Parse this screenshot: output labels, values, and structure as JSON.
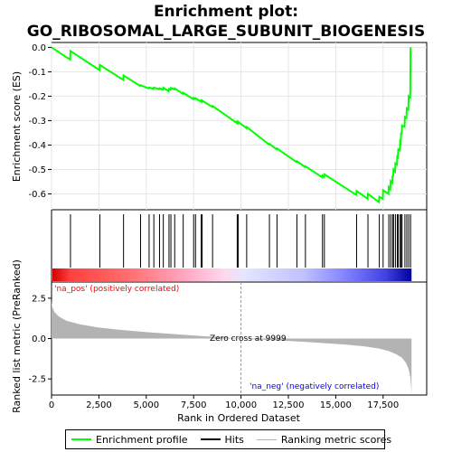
{
  "chart_data": {
    "type": "line",
    "title_line1": "Enrichment plot:",
    "title_line2": "GO_RIBOSOMAL_LARGE_SUBUNIT_BIOGENESIS",
    "xlabel": "Rank in Ordered Dataset",
    "es_ylabel": "Enrichment score (ES)",
    "metric_ylabel": "Ranked list metric (PreRanked)",
    "xlim": [
      0,
      19800
    ],
    "es_ylim": [
      -0.665,
      0.02
    ],
    "metric_ylim": [
      -3.5,
      3.5
    ],
    "x_ticks": [
      0,
      2500,
      5000,
      7500,
      10000,
      12500,
      15000,
      17500
    ],
    "x_tick_labels": [
      "0",
      "2,500",
      "5,000",
      "7,500",
      "10,000",
      "12,500",
      "15,000",
      "17,500"
    ],
    "es_ticks": [
      0.0,
      -0.1,
      -0.2,
      -0.3,
      -0.4,
      -0.5,
      -0.6
    ],
    "es_tick_labels": [
      "0.0",
      "-0.1",
      "-0.2",
      "-0.3",
      "-0.4",
      "-0.5",
      "-0.6"
    ],
    "metric_ticks": [
      2.5,
      0.0,
      -2.5
    ],
    "metric_tick_labels": [
      "2.5",
      "0.0",
      "-2.5"
    ],
    "zero_cross_label": "Zero cross at 9999",
    "zero_cross_rank": 9999,
    "na_pos_label": "'na_pos' (positively correlated)",
    "na_neg_label": "'na_neg' (negatively correlated)",
    "total_ranks": 19000,
    "hits": [
      1000,
      2550,
      3800,
      4700,
      5150,
      5400,
      5700,
      5900,
      6200,
      6300,
      6500,
      6950,
      7500,
      7600,
      7900,
      7950,
      8500,
      9800,
      9850,
      10300,
      11500,
      11900,
      12950,
      13400,
      14300,
      14400,
      16100,
      16700,
      17300,
      17500,
      17800,
      17900,
      18000,
      18050,
      18150,
      18250,
      18300,
      18400,
      18450,
      18500,
      18650,
      18750,
      18850,
      18950
    ],
    "es_curve": [
      [
        0,
        0.0
      ],
      [
        980,
        -0.05
      ],
      [
        1000,
        -0.015
      ],
      [
        2530,
        -0.093
      ],
      [
        2550,
        -0.072
      ],
      [
        3780,
        -0.133
      ],
      [
        3800,
        -0.115
      ],
      [
        4680,
        -0.158
      ],
      [
        4700,
        -0.155
      ],
      [
        5130,
        -0.168
      ],
      [
        5150,
        -0.165
      ],
      [
        5380,
        -0.17
      ],
      [
        5400,
        -0.165
      ],
      [
        5680,
        -0.171
      ],
      [
        5700,
        -0.168
      ],
      [
        5880,
        -0.173
      ],
      [
        5900,
        -0.165
      ],
      [
        6180,
        -0.18
      ],
      [
        6200,
        -0.17
      ],
      [
        6280,
        -0.173
      ],
      [
        6300,
        -0.166
      ],
      [
        6480,
        -0.172
      ],
      [
        6500,
        -0.168
      ],
      [
        6930,
        -0.19
      ],
      [
        6950,
        -0.186
      ],
      [
        7480,
        -0.212
      ],
      [
        7500,
        -0.207
      ],
      [
        7580,
        -0.211
      ],
      [
        7600,
        -0.208
      ],
      [
        7880,
        -0.222
      ],
      [
        7900,
        -0.218
      ],
      [
        7930,
        -0.222
      ],
      [
        7950,
        -0.218
      ],
      [
        8480,
        -0.244
      ],
      [
        8500,
        -0.24
      ],
      [
        9780,
        -0.31
      ],
      [
        9800,
        -0.305
      ],
      [
        9830,
        -0.31
      ],
      [
        9850,
        -0.305
      ],
      [
        10280,
        -0.33
      ],
      [
        10300,
        -0.326
      ],
      [
        11480,
        -0.398
      ],
      [
        11500,
        -0.395
      ],
      [
        11880,
        -0.418
      ],
      [
        11900,
        -0.414
      ],
      [
        12930,
        -0.47
      ],
      [
        12950,
        -0.466
      ],
      [
        13380,
        -0.49
      ],
      [
        13400,
        -0.487
      ],
      [
        14280,
        -0.532
      ],
      [
        14300,
        -0.525
      ],
      [
        14380,
        -0.53
      ],
      [
        14400,
        -0.52
      ],
      [
        16080,
        -0.604
      ],
      [
        16100,
        -0.588
      ],
      [
        16680,
        -0.62
      ],
      [
        16700,
        -0.6
      ],
      [
        17280,
        -0.634
      ],
      [
        17300,
        -0.612
      ],
      [
        17480,
        -0.62
      ],
      [
        17500,
        -0.585
      ],
      [
        17780,
        -0.6
      ],
      [
        17800,
        -0.572
      ],
      [
        17880,
        -0.58
      ],
      [
        17900,
        -0.548
      ],
      [
        17980,
        -0.555
      ],
      [
        18000,
        -0.525
      ],
      [
        18030,
        -0.53
      ],
      [
        18050,
        -0.5
      ],
      [
        18130,
        -0.508
      ],
      [
        18150,
        -0.475
      ],
      [
        18230,
        -0.48
      ],
      [
        18250,
        -0.448
      ],
      [
        18280,
        -0.45
      ],
      [
        18300,
        -0.418
      ],
      [
        18380,
        -0.422
      ],
      [
        18400,
        -0.386
      ],
      [
        18430,
        -0.39
      ],
      [
        18450,
        -0.35
      ],
      [
        18480,
        -0.355
      ],
      [
        18500,
        -0.32
      ],
      [
        18630,
        -0.325
      ],
      [
        18650,
        -0.285
      ],
      [
        18730,
        -0.29
      ],
      [
        18750,
        -0.25
      ],
      [
        18830,
        -0.255
      ],
      [
        18850,
        -0.2
      ],
      [
        18930,
        -0.205
      ],
      [
        18950,
        0.0
      ]
    ],
    "metric_curve": [
      [
        0,
        2.4
      ],
      [
        30,
        2.0
      ],
      [
        150,
        1.65
      ],
      [
        400,
        1.35
      ],
      [
        800,
        1.1
      ],
      [
        1500,
        0.88
      ],
      [
        2500,
        0.68
      ],
      [
        3500,
        0.55
      ],
      [
        5000,
        0.4
      ],
      [
        6500,
        0.27
      ],
      [
        8000,
        0.15
      ],
      [
        9000,
        0.08
      ],
      [
        9999,
        0.0
      ],
      [
        11000,
        -0.06
      ],
      [
        12500,
        -0.15
      ],
      [
        14000,
        -0.25
      ],
      [
        15500,
        -0.37
      ],
      [
        16500,
        -0.48
      ],
      [
        17300,
        -0.62
      ],
      [
        17800,
        -0.78
      ],
      [
        18200,
        -0.97
      ],
      [
        18500,
        -1.2
      ],
      [
        18700,
        -1.5
      ],
      [
        18850,
        -1.9
      ],
      [
        18950,
        -2.5
      ],
      [
        19000,
        -3.4
      ]
    ],
    "colors": {
      "es_line": "#00ff00",
      "hit_line": "#000000",
      "metric_fill": "#b3b3b3",
      "na_pos_text": "#ff0000",
      "na_neg_text": "#0000ff",
      "zero_line": "#999999"
    }
  },
  "legend": {
    "items": [
      {
        "label": "Enrichment profile",
        "color": "#00ff00"
      },
      {
        "label": "Hits",
        "color": "#000000"
      },
      {
        "label": "Ranking metric scores",
        "color": "#b3b3b3"
      }
    ]
  }
}
